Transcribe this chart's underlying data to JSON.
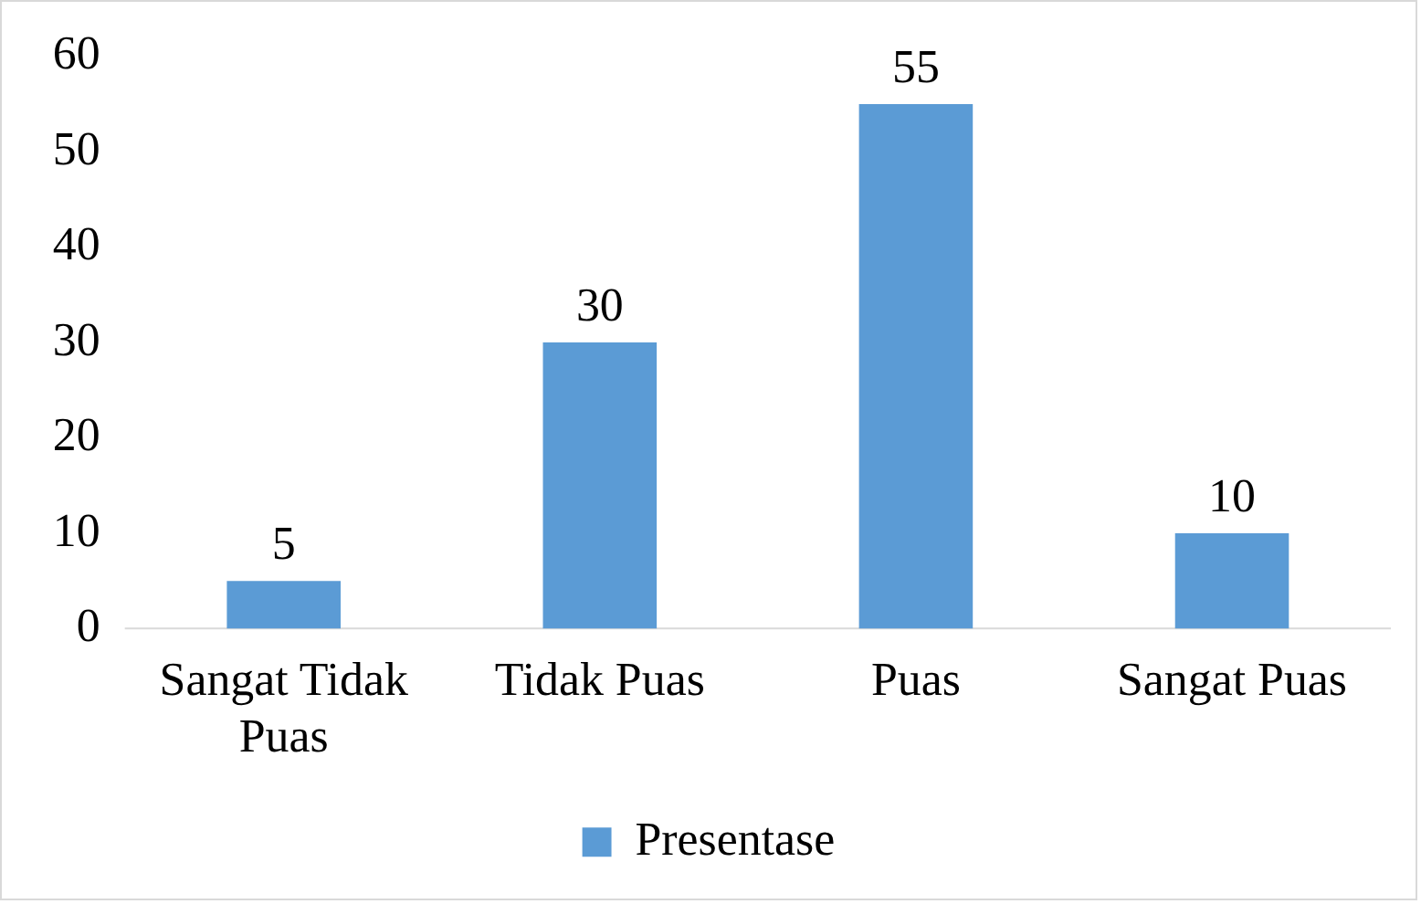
{
  "chart_data": {
    "type": "bar",
    "categories": [
      "Sangat Tidak Puas",
      "Tidak Puas",
      "Puas",
      "Sangat Puas"
    ],
    "series": [
      {
        "name": "Presentase",
        "color": "#5b9bd5",
        "values": [
          5,
          30,
          55,
          10
        ]
      }
    ],
    "ylim": [
      0,
      60
    ],
    "yticks": [
      0,
      10,
      20,
      30,
      40,
      50,
      60
    ],
    "grid": false,
    "legend": "bottom",
    "data_labels": true
  }
}
